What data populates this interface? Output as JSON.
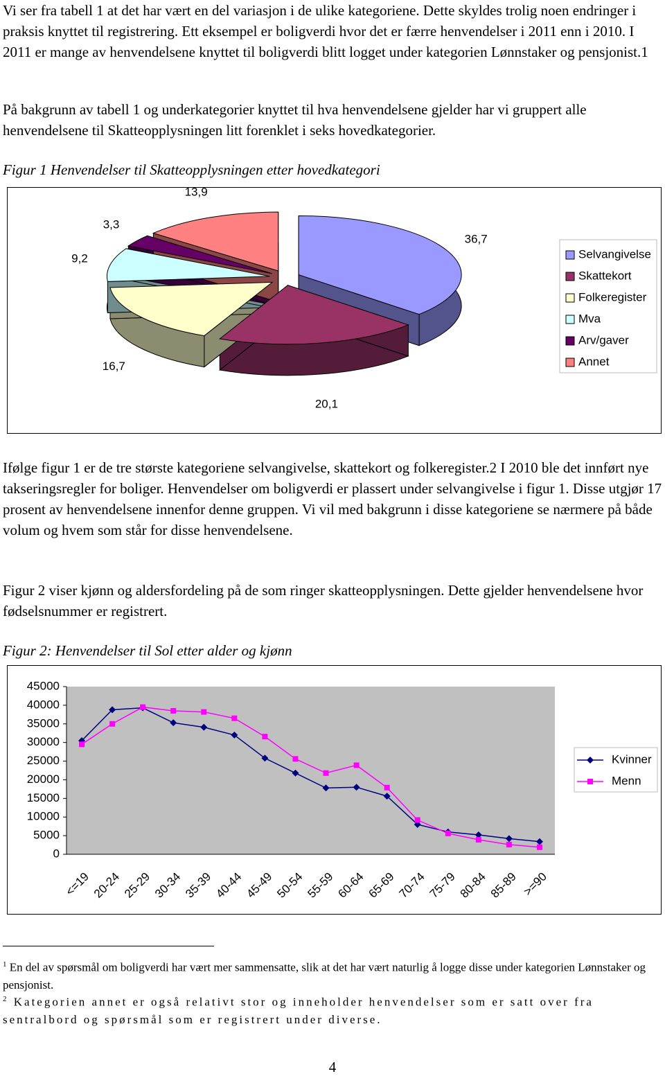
{
  "text": {
    "p1": "Vi ser fra tabell 1 at det har vært en del variasjon i de ulike kategoriene. Dette skyldes trolig noen endringer i praksis knyttet til registrering. Ett eksempel er boligverdi hvor det er færre henvendelser i 2011 enn i 2010. I 2011 er mange av henvendelsene knyttet til boligverdi blitt logget under kategorien Lønnstaker og pensjonist.1",
    "p2": "På bakgrunn av tabell 1 og underkategorier knyttet til hva henvendelsene gjelder har vi gruppert alle henvendelsene til Skatteopplysningen litt forenklet i seks hovedkategorier.",
    "caption1": "Figur 1 Henvendelser til Skatteopplysningen etter hovedkategori",
    "p3": "Ifølge figur 1 er de tre største kategoriene selvangivelse, skattekort og folkeregister.2 I 2010 ble det innført nye takseringsregler for boliger. Henvendelser om boligverdi er plassert under selvangivelse i figur 1. Disse utgjør 17 prosent av henvendelsene innenfor denne gruppen. Vi vil med bakgrunn i disse kategoriene se nærmere på både volum og hvem som står for disse henvendelsene.",
    "p4": "Figur 2 viser kjønn og aldersfordeling på de som ringer skatteopplysningen. Dette gjelder henvendelsene hvor fødselsnummer er registrert.",
    "caption2": "Figur 2: Henvendelser til Sol etter alder og kjønn"
  },
  "chart_data": [
    {
      "type": "pie",
      "categories": [
        "Selvangivelse",
        "Skattekort",
        "Folkeregister",
        "Mva",
        "Arv/gaver",
        "Annet"
      ],
      "values": [
        36.7,
        20.1,
        16.7,
        9.2,
        3.3,
        13.9
      ],
      "value_labels": [
        "36,7",
        "20,1",
        "16,7",
        "9,2",
        "3,3",
        "13,9"
      ],
      "colors": [
        "#9999ff",
        "#993366",
        "#ffffcc",
        "#ccffff",
        "#660066",
        "#ff8080"
      ],
      "legend": "right"
    },
    {
      "type": "line",
      "categories": [
        "<=19",
        "20-24",
        "25-29",
        "30-34",
        "35-39",
        "40-44",
        "45-49",
        "50-54",
        "55-59",
        "60-64",
        "65-69",
        "70-74",
        "75-79",
        "80-84",
        "85-89",
        ">=90"
      ],
      "series": [
        {
          "name": "Kvinner",
          "color": "#000080",
          "marker": "diamond",
          "values": [
            30500,
            38800,
            39300,
            35300,
            34100,
            32000,
            25800,
            21800,
            17800,
            18000,
            15600,
            8000,
            6000,
            5200,
            4200,
            3400
          ]
        },
        {
          "name": "Menn",
          "color": "#ff00ff",
          "marker": "square",
          "values": [
            29500,
            35000,
            39500,
            38500,
            38200,
            36500,
            31600,
            25600,
            21800,
            23900,
            17900,
            9200,
            5600,
            3900,
            2600,
            1900
          ]
        }
      ],
      "ylim": [
        0,
        45000
      ],
      "yticks": [
        0,
        5000,
        10000,
        15000,
        20000,
        25000,
        30000,
        35000,
        40000,
        45000
      ],
      "grid": false,
      "legend": "right"
    }
  ],
  "footnotes": [
    {
      "number": "1",
      "text": "En del av spørsmål om boligverdi har vært mer sammensatte, slik at det har vært naturlig å logge disse under kategorien Lønnstaker og pensjonist."
    },
    {
      "number": "2",
      "text": "Kategorien annet er også relativt stor og inneholder henvendelser som er satt over fra sentralbord og spørsmål som er registrert under diverse."
    }
  ],
  "page_number": "4"
}
